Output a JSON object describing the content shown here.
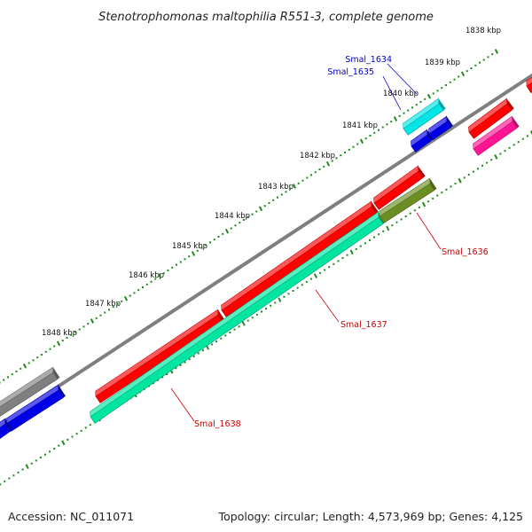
{
  "title": "Stenotrophomonas maltophilia R551-3, complete genome",
  "footer": {
    "accession": "Accession: NC_011071",
    "stats": "Topology: circular; Length: 4,573,969 bp; Genes: 4,125"
  },
  "colors": {
    "backbone": "#7f7f7f",
    "ticks": "#1e8a1e",
    "label_blue": "#0000cc",
    "label_red": "#cc0000"
  },
  "ticks": [
    {
      "label": "1838 kbp"
    },
    {
      "label": "1839 kbp"
    },
    {
      "label": "1840 kbp"
    },
    {
      "label": "1841 kbp"
    },
    {
      "label": "1842 kbp"
    },
    {
      "label": "1843 kbp"
    },
    {
      "label": "1844 kbp"
    },
    {
      "label": "1845 kbp"
    },
    {
      "label": "1846 kbp"
    },
    {
      "label": "1847 kbp"
    },
    {
      "label": "1848 kbp"
    }
  ],
  "genes": [
    {
      "id": "Smal_1634",
      "color": "#00e5e5"
    },
    {
      "id": "Smal_1635",
      "color": "#0000e6"
    },
    {
      "id": "Smal_1636",
      "color": "#6b8e23"
    },
    {
      "id": "Smal_1637",
      "color": "#00e5a0"
    },
    {
      "id": "Smal_1638",
      "color": "#ff0000"
    }
  ],
  "other_features": [
    {
      "color": "#ff0000"
    },
    {
      "color": "#ff1493"
    },
    {
      "color": "#ff0000"
    },
    {
      "color": "#ff0000"
    },
    {
      "color": "#ff0000"
    },
    {
      "color": "#808080"
    },
    {
      "color": "#0000e6"
    },
    {
      "color": "#0000e6"
    },
    {
      "color": "#0000e6"
    }
  ]
}
